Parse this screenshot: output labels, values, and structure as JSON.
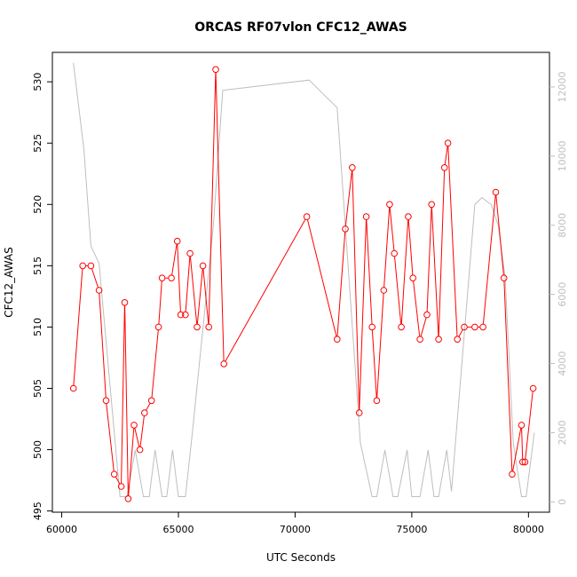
{
  "chart_data": {
    "type": "line",
    "title": "ORCAS RF07vlon CFC12_AWAS",
    "xlabel": "UTC Seconds",
    "ylabel": "CFC12_AWAS",
    "xlim": [
      59600,
      80900
    ],
    "ylim": [
      494.9,
      532.4
    ],
    "y2lim": [
      -300,
      13000
    ],
    "x_ticks": [
      60000,
      65000,
      70000,
      75000,
      80000
    ],
    "x_tick_labels": [
      "60000",
      "65000",
      "70000",
      "75000",
      "80000"
    ],
    "y_ticks": [
      495,
      500,
      505,
      510,
      515,
      520,
      525,
      530
    ],
    "y_tick_labels": [
      "495",
      "500",
      "505",
      "510",
      "515",
      "520",
      "525",
      "530"
    ],
    "y2_ticks": [
      0,
      2000,
      4000,
      6000,
      8000,
      10000,
      12000
    ],
    "y2_tick_labels": [
      "0",
      "2000",
      "4000",
      "6000",
      "8000",
      "10000",
      "12000"
    ],
    "series": [
      {
        "name": "CFC12_AWAS",
        "axis": "left",
        "color": "#ff0000",
        "x": [
          60500,
          60900,
          61250,
          61600,
          61900,
          62250,
          62550,
          62700,
          62850,
          63100,
          63350,
          63550,
          63850,
          64150,
          64300,
          64700,
          64950,
          65100,
          65300,
          65500,
          65800,
          66050,
          66300,
          66600,
          66950,
          70500,
          71800,
          72150,
          72450,
          72750,
          73050,
          73300,
          73500,
          73800,
          74050,
          74250,
          74550,
          74850,
          75050,
          75350,
          75650,
          75850,
          76150,
          76400,
          76550,
          76950,
          77250,
          77700,
          78050,
          78600,
          78950,
          79300,
          79700,
          79750,
          79850,
          80200
        ],
        "values": [
          505,
          515,
          515,
          513,
          504,
          498,
          497,
          512,
          496,
          502,
          500,
          503,
          504,
          510,
          514,
          514,
          517,
          511,
          511,
          516,
          510,
          515,
          510,
          531,
          507,
          519,
          509,
          518,
          523,
          503,
          519,
          510,
          504,
          513,
          520,
          516,
          510,
          519,
          514,
          509,
          511,
          520,
          509,
          523,
          525,
          509,
          510,
          510,
          510,
          521,
          514,
          498,
          502,
          499,
          499,
          505
        ]
      },
      {
        "name": "vlon",
        "axis": "right",
        "color": "#bebebe",
        "x": [
          60500,
          60950,
          61250,
          61600,
          62500,
          62800,
          63150,
          63500,
          63750,
          64000,
          64300,
          64500,
          64750,
          65000,
          65300,
          65600,
          66500,
          66900,
          70600,
          71800,
          72800,
          73300,
          73500,
          73850,
          74200,
          74400,
          74800,
          75000,
          75350,
          75700,
          75950,
          76150,
          76500,
          76700,
          77700,
          78000,
          78400,
          78700,
          79000,
          79350,
          79700,
          79900,
          80250
        ],
        "values": [
          12700,
          10200,
          7400,
          6900,
          150,
          150,
          1500,
          150,
          150,
          1500,
          150,
          150,
          1500,
          150,
          150,
          2000,
          8000,
          11900,
          12200,
          11400,
          1700,
          150,
          150,
          1500,
          150,
          150,
          1500,
          150,
          150,
          1500,
          150,
          150,
          1500,
          300,
          8600,
          8800,
          8600,
          8000,
          6500,
          1700,
          150,
          150,
          2000
        ]
      }
    ]
  }
}
